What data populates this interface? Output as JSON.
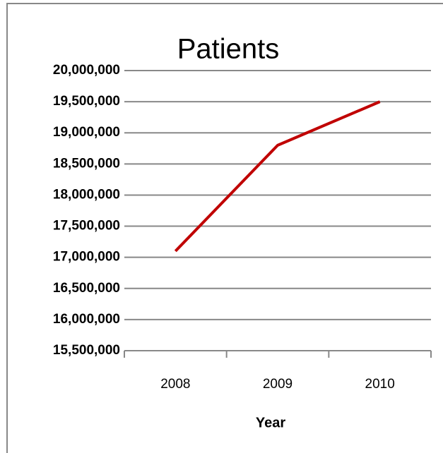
{
  "chart_data": {
    "type": "line",
    "title": "Patients",
    "x_label": "Year",
    "categories": [
      "2008",
      "2009",
      "2010"
    ],
    "series": [
      {
        "name": "Patients",
        "color": "#c00000",
        "values": [
          17100000,
          18800000,
          19500000
        ]
      }
    ],
    "ylim": [
      15500000,
      20000000
    ],
    "yticks": [
      {
        "value": 15500000,
        "label": "15,500,000"
      },
      {
        "value": 16000000,
        "label": "16,000,000"
      },
      {
        "value": 16500000,
        "label": "16,500,000"
      },
      {
        "value": 17000000,
        "label": "17,000,000"
      },
      {
        "value": 17500000,
        "label": "17,500,000"
      },
      {
        "value": 18000000,
        "label": "18,000,000"
      },
      {
        "value": 18500000,
        "label": "18,500,000"
      },
      {
        "value": 19000000,
        "label": "19,000,000"
      },
      {
        "value": 19500000,
        "label": "19,500,000"
      },
      {
        "value": 20000000,
        "label": "20,000,000"
      }
    ],
    "grid": true
  }
}
